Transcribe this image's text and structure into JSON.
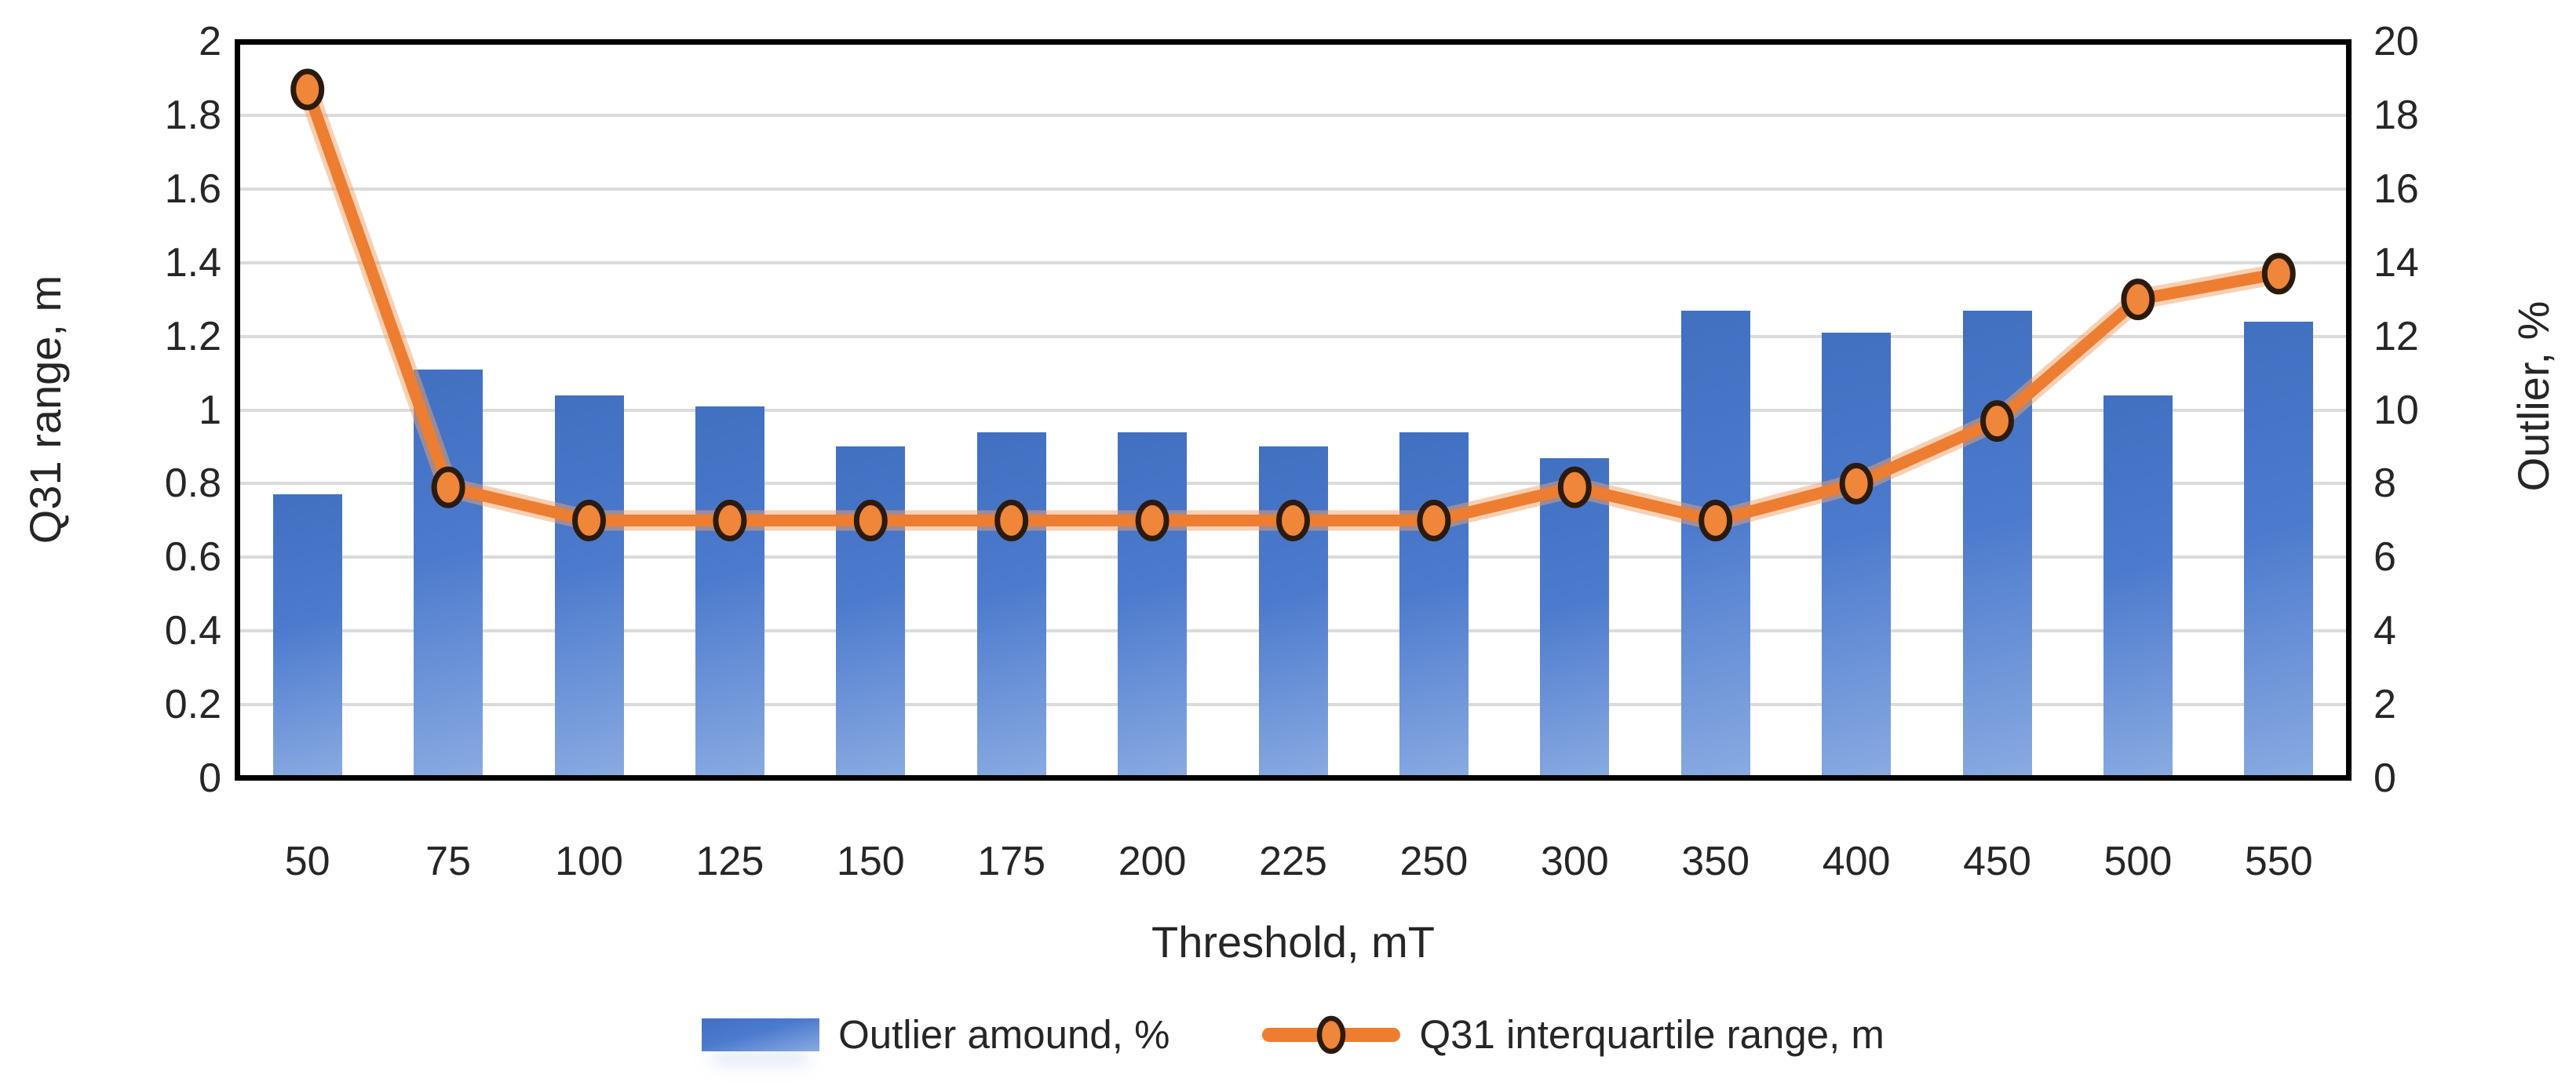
{
  "chart_data": {
    "type": "combo-bar-line",
    "title": "",
    "categories": [
      "50",
      "75",
      "100",
      "125",
      "150",
      "175",
      "200",
      "225",
      "250",
      "300",
      "350",
      "400",
      "450",
      "500",
      "550"
    ],
    "series": [
      {
        "name": "Outlier amound, %",
        "type": "bar",
        "axis": "right",
        "values": [
          7.7,
          11.1,
          10.4,
          10.1,
          9.0,
          9.4,
          9.4,
          9.0,
          9.4,
          8.7,
          12.7,
          12.1,
          12.7,
          10.4,
          12.4
        ]
      },
      {
        "name": "Q31 interquartile range, m",
        "type": "line",
        "axis": "left",
        "values": [
          1.87,
          0.79,
          0.7,
          0.7,
          0.7,
          0.7,
          0.7,
          0.7,
          0.7,
          0.79,
          0.7,
          0.8,
          0.97,
          1.3,
          1.37
        ]
      }
    ],
    "xlabel": "Threshold, mT",
    "ylabel_left": "Q31 range, m",
    "ylabel_right": "Outlier, %",
    "ylim_left": [
      0,
      2
    ],
    "ylim_right": [
      0,
      20
    ],
    "yticks_left": [
      "2",
      "1.8",
      "1.6",
      "1.4",
      "1.2",
      "1",
      "0.8",
      "0.6",
      "0.4",
      "0.2",
      "0"
    ],
    "yticks_right": [
      "20",
      "18",
      "16",
      "14",
      "12",
      "10",
      "8",
      "6",
      "4",
      "2",
      "0"
    ],
    "grid": "horizontal",
    "legend_position": "bottom",
    "colors": {
      "bar_top": "#4170C1",
      "bar_mid": "#4C7ACD",
      "bar_bottom": "#8AABE2",
      "line": "#ED7D31",
      "line_halo": "#F2A168",
      "marker_fill": "#EF863A",
      "marker_stroke": "#2B1B0E",
      "gridline": "#DBDBDB",
      "plot_border": "#000000",
      "text": "#262626"
    }
  }
}
